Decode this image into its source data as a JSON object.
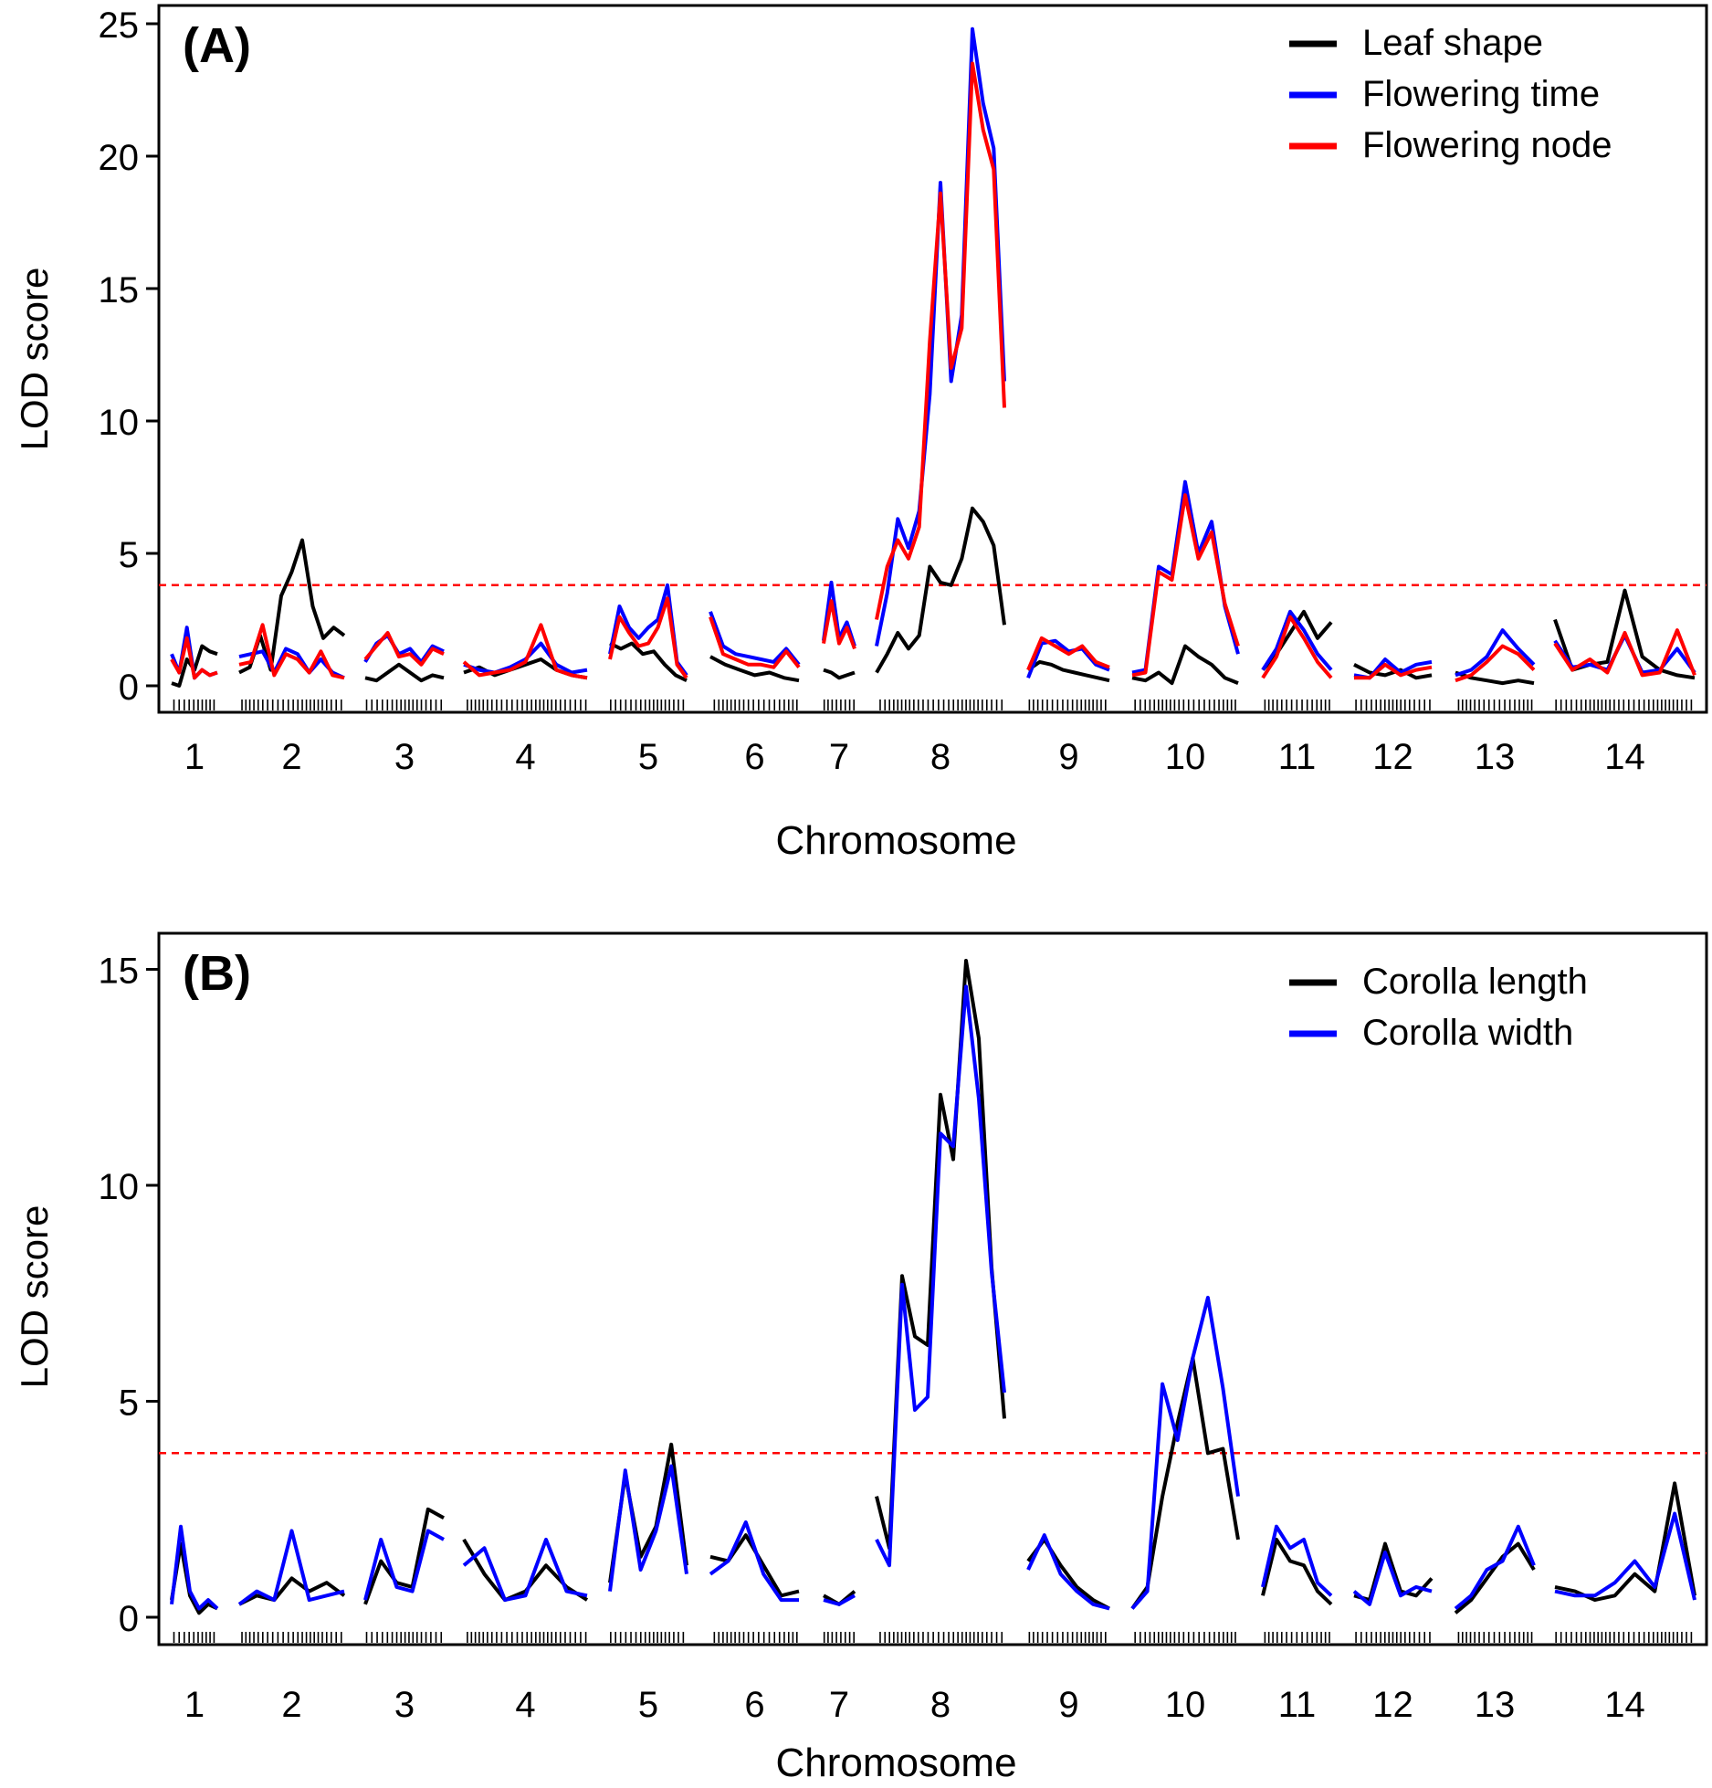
{
  "chart_data": [
    {
      "type": "line",
      "panel_label": "(A)",
      "xlabel": "Chromosome",
      "ylabel": "LOD score",
      "ylim": [
        0,
        25
      ],
      "yticks": [
        0,
        5,
        10,
        15,
        20,
        25
      ],
      "threshold": 3.8,
      "legend_position": "top-right",
      "chromosomes": [
        "1",
        "2",
        "3",
        "4",
        "5",
        "6",
        "7",
        "8",
        "9",
        "10",
        "11",
        "12",
        "13",
        "14"
      ],
      "series": [
        {
          "name": "Leaf shape",
          "color": "#000000",
          "values": [
            [
              0.1,
              0.0,
              1.0,
              0.6,
              1.5,
              1.3,
              1.2
            ],
            [
              0.5,
              0.7,
              1.9,
              0.6,
              3.4,
              4.3,
              5.5,
              3.0,
              1.8,
              2.2,
              1.9
            ],
            [
              0.3,
              0.2,
              0.5,
              0.8,
              0.5,
              0.2,
              0.4,
              0.3
            ],
            [
              0.5,
              0.7,
              0.4,
              0.6,
              0.8,
              1.0,
              0.6,
              0.4,
              0.3
            ],
            [
              1.6,
              1.4,
              1.6,
              1.2,
              1.3,
              0.8,
              0.4,
              0.2
            ],
            [
              1.1,
              0.8,
              0.6,
              0.4,
              0.5,
              0.3,
              0.2
            ],
            [
              0.6,
              0.5,
              0.3,
              0.4,
              0.5
            ],
            [
              0.5,
              1.2,
              2.0,
              1.4,
              1.9,
              4.5,
              3.9,
              3.8,
              4.8,
              6.7,
              6.2,
              5.3,
              2.3
            ],
            [
              0.6,
              0.9,
              0.8,
              0.6,
              0.5,
              0.4,
              0.3,
              0.2
            ],
            [
              0.3,
              0.2,
              0.5,
              0.1,
              1.5,
              1.1,
              0.8,
              0.3,
              0.1
            ],
            [
              0.6,
              1.2,
              2.0,
              2.8,
              1.8,
              2.4
            ],
            [
              0.8,
              0.5,
              0.4,
              0.6,
              0.3,
              0.4
            ],
            [
              0.5,
              0.3,
              0.2,
              0.1,
              0.2,
              0.1
            ],
            [
              2.5,
              0.6,
              0.8,
              0.9,
              3.6,
              1.1,
              0.6,
              0.4,
              0.3
            ]
          ]
        },
        {
          "name": "Flowering time",
          "color": "#0000ff",
          "values": [
            [
              1.2,
              0.5,
              2.2,
              0.3,
              0.6,
              0.4,
              0.5
            ],
            [
              1.1,
              1.2,
              1.3,
              0.5,
              1.4,
              1.2,
              0.5,
              1.0,
              0.5,
              0.3
            ],
            [
              0.9,
              1.6,
              1.9,
              1.2,
              1.4,
              0.9,
              1.5,
              1.3
            ],
            [
              0.8,
              0.6,
              0.5,
              0.7,
              1.0,
              1.6,
              0.8,
              0.5,
              0.6
            ],
            [
              1.2,
              3.0,
              2.2,
              1.8,
              2.2,
              2.5,
              3.8,
              0.9,
              0.4
            ],
            [
              2.8,
              1.5,
              1.2,
              1.1,
              1.0,
              0.9,
              1.4,
              0.8
            ],
            [
              1.7,
              3.9,
              1.8,
              2.4,
              1.5
            ],
            [
              1.5,
              3.5,
              6.3,
              5.2,
              6.6,
              11.0,
              19.0,
              11.5,
              14.0,
              24.8,
              22.0,
              20.3,
              11.5
            ],
            [
              0.3,
              1.6,
              1.7,
              1.3,
              1.4,
              0.8,
              0.6
            ],
            [
              0.5,
              0.6,
              4.5,
              4.2,
              7.7,
              5.0,
              6.2,
              3.0,
              1.2
            ],
            [
              0.6,
              1.4,
              2.8,
              2.1,
              1.2,
              0.6
            ],
            [
              0.4,
              0.3,
              1.0,
              0.5,
              0.8,
              0.9
            ],
            [
              0.4,
              0.6,
              1.1,
              2.1,
              1.4,
              0.8
            ],
            [
              1.7,
              0.7,
              0.8,
              0.6,
              1.9,
              0.5,
              0.6,
              1.4,
              0.5
            ]
          ]
        },
        {
          "name": "Flowering node",
          "color": "#ff0000",
          "values": [
            [
              1.0,
              0.5,
              1.8,
              0.3,
              0.6,
              0.4,
              0.5
            ],
            [
              0.8,
              0.9,
              2.3,
              0.4,
              1.2,
              1.0,
              0.5,
              1.3,
              0.4,
              0.3
            ],
            [
              1.0,
              1.5,
              2.0,
              1.1,
              1.2,
              0.8,
              1.4,
              1.2
            ],
            [
              0.9,
              0.4,
              0.5,
              0.6,
              0.9,
              2.3,
              0.6,
              0.4,
              0.3
            ],
            [
              1.0,
              2.6,
              2.0,
              1.5,
              1.6,
              2.2,
              3.3,
              0.8,
              0.3
            ],
            [
              2.6,
              1.2,
              1.0,
              0.8,
              0.8,
              0.7,
              1.3,
              0.7
            ],
            [
              1.6,
              3.2,
              1.6,
              2.2,
              1.4
            ],
            [
              2.5,
              4.5,
              5.5,
              4.8,
              6.0,
              13.0,
              18.6,
              12.0,
              13.5,
              23.5,
              21.0,
              19.5,
              10.5
            ],
            [
              0.6,
              1.8,
              1.5,
              1.2,
              1.5,
              0.9,
              0.7
            ],
            [
              0.4,
              0.5,
              4.3,
              4.0,
              7.2,
              4.8,
              5.8,
              3.1,
              1.5
            ],
            [
              0.3,
              1.1,
              2.6,
              1.8,
              0.9,
              0.3
            ],
            [
              0.3,
              0.3,
              0.8,
              0.4,
              0.6,
              0.7
            ],
            [
              0.2,
              0.4,
              0.9,
              1.5,
              1.2,
              0.6
            ],
            [
              1.6,
              0.6,
              1.0,
              0.5,
              2.0,
              0.4,
              0.5,
              2.1,
              0.4
            ]
          ]
        }
      ]
    },
    {
      "type": "line",
      "panel_label": "(B)",
      "xlabel": "Chromosome",
      "ylabel": "LOD score",
      "ylim": [
        0,
        16
      ],
      "yticks": [
        0,
        5,
        10,
        15
      ],
      "threshold": 3.8,
      "legend_position": "top-right",
      "chromosomes": [
        "1",
        "2",
        "3",
        "4",
        "5",
        "6",
        "7",
        "8",
        "9",
        "10",
        "11",
        "12",
        "13",
        "14"
      ],
      "series": [
        {
          "name": "Corolla length",
          "color": "#000000",
          "values": [
            [
              0.4,
              1.7,
              0.5,
              0.1,
              0.3,
              0.2
            ],
            [
              0.3,
              0.5,
              0.4,
              0.9,
              0.6,
              0.8,
              0.5
            ],
            [
              0.3,
              1.3,
              0.8,
              0.7,
              2.5,
              2.3
            ],
            [
              1.8,
              1.0,
              0.4,
              0.6,
              1.2,
              0.7,
              0.4
            ],
            [
              0.8,
              3.3,
              1.4,
              2.1,
              4.0,
              1.2
            ],
            [
              1.4,
              1.3,
              1.9,
              1.2,
              0.5,
              0.6
            ],
            [
              0.5,
              0.3,
              0.6
            ],
            [
              2.8,
              1.6,
              7.9,
              6.5,
              6.3,
              12.1,
              10.6,
              15.2,
              13.4,
              8.1,
              4.6
            ],
            [
              1.3,
              1.8,
              1.2,
              0.7,
              0.4,
              0.2
            ],
            [
              0.2,
              0.7,
              2.8,
              4.5,
              6.0,
              3.8,
              3.9,
              1.8
            ],
            [
              0.5,
              1.8,
              1.3,
              1.2,
              0.6,
              0.3
            ],
            [
              0.5,
              0.4,
              1.7,
              0.6,
              0.5,
              0.9
            ],
            [
              0.1,
              0.4,
              0.9,
              1.4,
              1.7,
              1.1
            ],
            [
              0.7,
              0.6,
              0.4,
              0.5,
              1.0,
              0.6,
              3.1,
              0.5
            ]
          ]
        },
        {
          "name": "Corolla width",
          "color": "#0000ff",
          "values": [
            [
              0.3,
              2.1,
              0.6,
              0.2,
              0.4,
              0.2
            ],
            [
              0.3,
              0.6,
              0.4,
              2.0,
              0.4,
              0.5,
              0.6
            ],
            [
              0.4,
              1.8,
              0.7,
              0.6,
              2.0,
              1.8
            ],
            [
              1.2,
              1.6,
              0.4,
              0.5,
              1.8,
              0.6,
              0.5
            ],
            [
              0.6,
              3.4,
              1.1,
              2.0,
              3.5,
              1.0
            ],
            [
              1.0,
              1.3,
              2.2,
              1.0,
              0.4,
              0.4
            ],
            [
              0.4,
              0.3,
              0.5
            ],
            [
              1.8,
              1.2,
              7.7,
              4.8,
              5.1,
              11.2,
              10.9,
              14.6,
              12.0,
              8.0,
              5.2
            ],
            [
              1.1,
              1.9,
              1.0,
              0.6,
              0.3,
              0.2
            ],
            [
              0.2,
              0.6,
              5.4,
              4.1,
              6.0,
              7.4,
              5.3,
              2.8
            ],
            [
              0.7,
              2.1,
              1.6,
              1.8,
              0.8,
              0.5
            ],
            [
              0.6,
              0.3,
              1.5,
              0.5,
              0.7,
              0.6
            ],
            [
              0.2,
              0.5,
              1.1,
              1.3,
              2.1,
              1.2
            ],
            [
              0.6,
              0.5,
              0.5,
              0.8,
              1.3,
              0.7,
              2.4,
              0.4
            ]
          ]
        }
      ]
    }
  ]
}
